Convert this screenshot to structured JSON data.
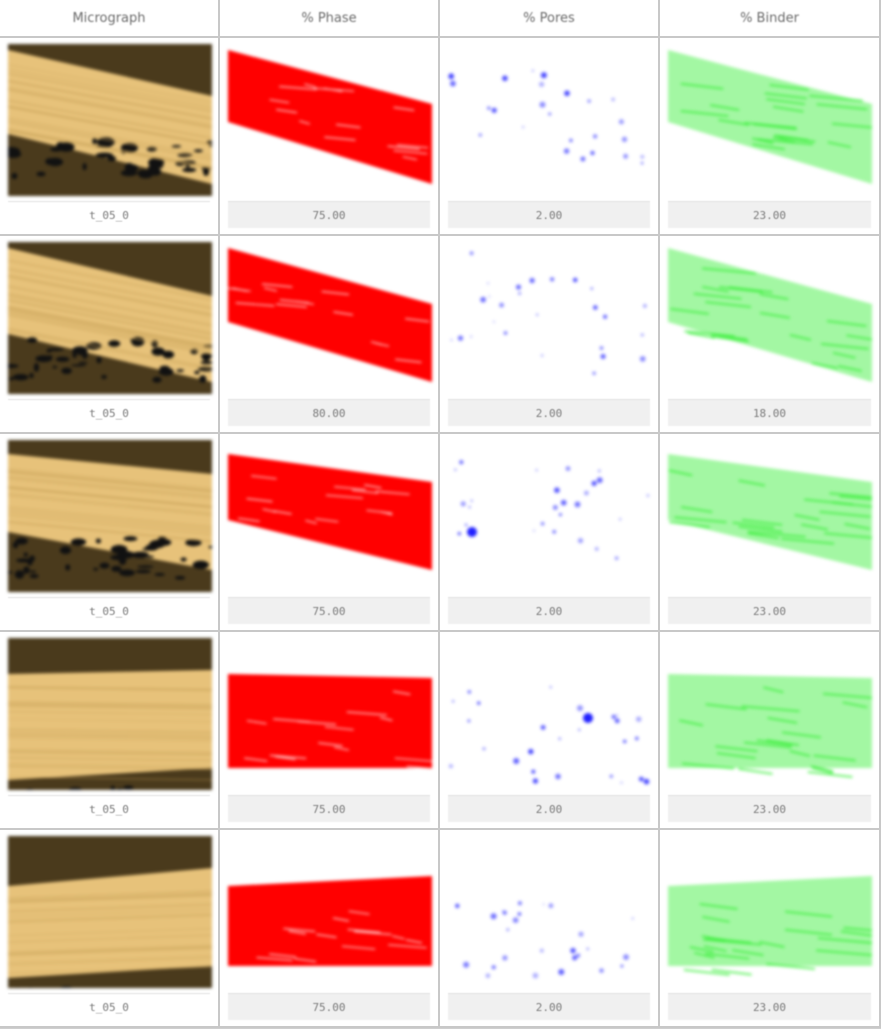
{
  "headers": [
    "Micrograph",
    "% Phase",
    "% Pores",
    "% Binder"
  ],
  "colors": {
    "phase": "#ff0000",
    "pores": "#2020ff",
    "binder": "#33ee33",
    "micro_light": "#e7c27a",
    "micro_dark": "#4a3a1c"
  },
  "rows": [
    {
      "micro_label": "t_05_0",
      "phase_value": "75.00",
      "pores_value": "2.00",
      "binder_value": "23.00"
    },
    {
      "micro_label": "t_05_0",
      "phase_value": "80.00",
      "pores_value": "2.00",
      "binder_value": "18.00"
    },
    {
      "micro_label": "t_05_0",
      "phase_value": "75.00",
      "pores_value": "2.00",
      "binder_value": "23.00"
    },
    {
      "micro_label": "t_05_0",
      "phase_value": "75.00",
      "pores_value": "2.00",
      "binder_value": "23.00"
    },
    {
      "micro_label": "t_05_0",
      "phase_value": "75.00",
      "pores_value": "2.00",
      "binder_value": "23.00"
    }
  ]
}
